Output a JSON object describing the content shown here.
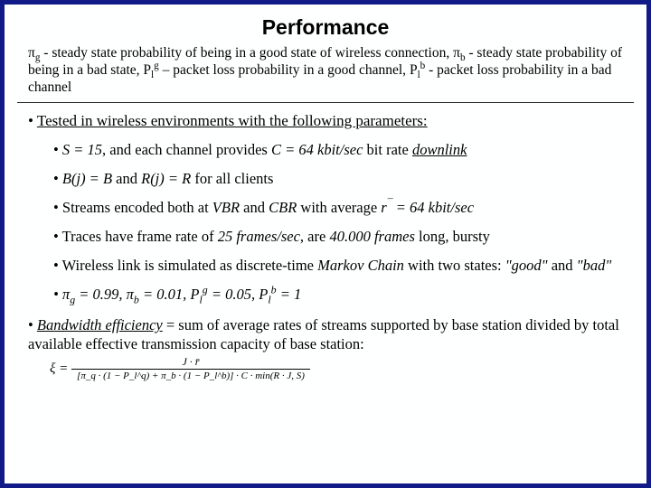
{
  "title": "Performance",
  "defs": {
    "pi_g": "π",
    "pi_g_sub": "g",
    "pi_g_text": " - steady state probability of being in a good state of wireless connection, ",
    "pi_b": "π",
    "pi_b_sub": "b",
    "pi_b_text": " - steady state probability of being in a bad state, ",
    "Pl": "P",
    "l_sub": "l",
    "g_sup": "g",
    "plg_text": " – packet loss probability in a good channel, ",
    "b_sup": "b",
    "plb_text": " -  packet loss probability in a bad channel"
  },
  "lvl1": "Tested in wireless environments with the following parameters:",
  "b1": {
    "a": "S = 15",
    "b": ", and each channel provides ",
    "c": "C = 64 kbit/sec",
    "d": " bit rate ",
    "e": "downlink"
  },
  "b2": {
    "a": "B(j) = B",
    "b": " and ",
    "c": "R(j) = R",
    "d": " for all clients"
  },
  "b3": {
    "a": "Streams encoded both at ",
    "b": "VBR",
    "c": " and ",
    "d": "CBR",
    "e": " with average ",
    "f": "r",
    "g": " = 64 kbit/sec"
  },
  "b4": {
    "a": "Traces have frame rate of ",
    "b": "25 frames/sec",
    "c": ", are ",
    "d": "40.000 frames",
    "e": " long,  bursty"
  },
  "b5": {
    "a": "Wireless link is simulated as discrete-time ",
    "b": "Markov Chain",
    "c": " with two states: ",
    "d": "\"good\"",
    "e": " and ",
    "f": "\"bad\""
  },
  "b6": {
    "a": "π",
    "a_sub": "g",
    "a_val": " = 0.99, ",
    "b": "π",
    "b_sub": "b",
    "b_val": " = 0.01, ",
    "c": "P",
    "c_sub": "l",
    "c_sup": "g",
    "c_val": " = 0.05, ",
    "d": "P",
    "d_sub": "l",
    "d_sup": "b",
    "d_val": " = 1"
  },
  "bw": {
    "a": "Bandwidth efficiency",
    "b": " = sum of average rates of streams supported by base station divided by total available effective transmission capacity of base station:"
  },
  "formula": {
    "lhs": "ξ = ",
    "num": "J · r̄",
    "den": "[π_q · (1 − P_l^q) + π_b · (1 − P_l^b)] · C · min(R · J, S)"
  },
  "style": {
    "border_color": "#111a86",
    "bg": "#feffff",
    "title_font": "Verdana",
    "body_font": "Times New Roman"
  }
}
